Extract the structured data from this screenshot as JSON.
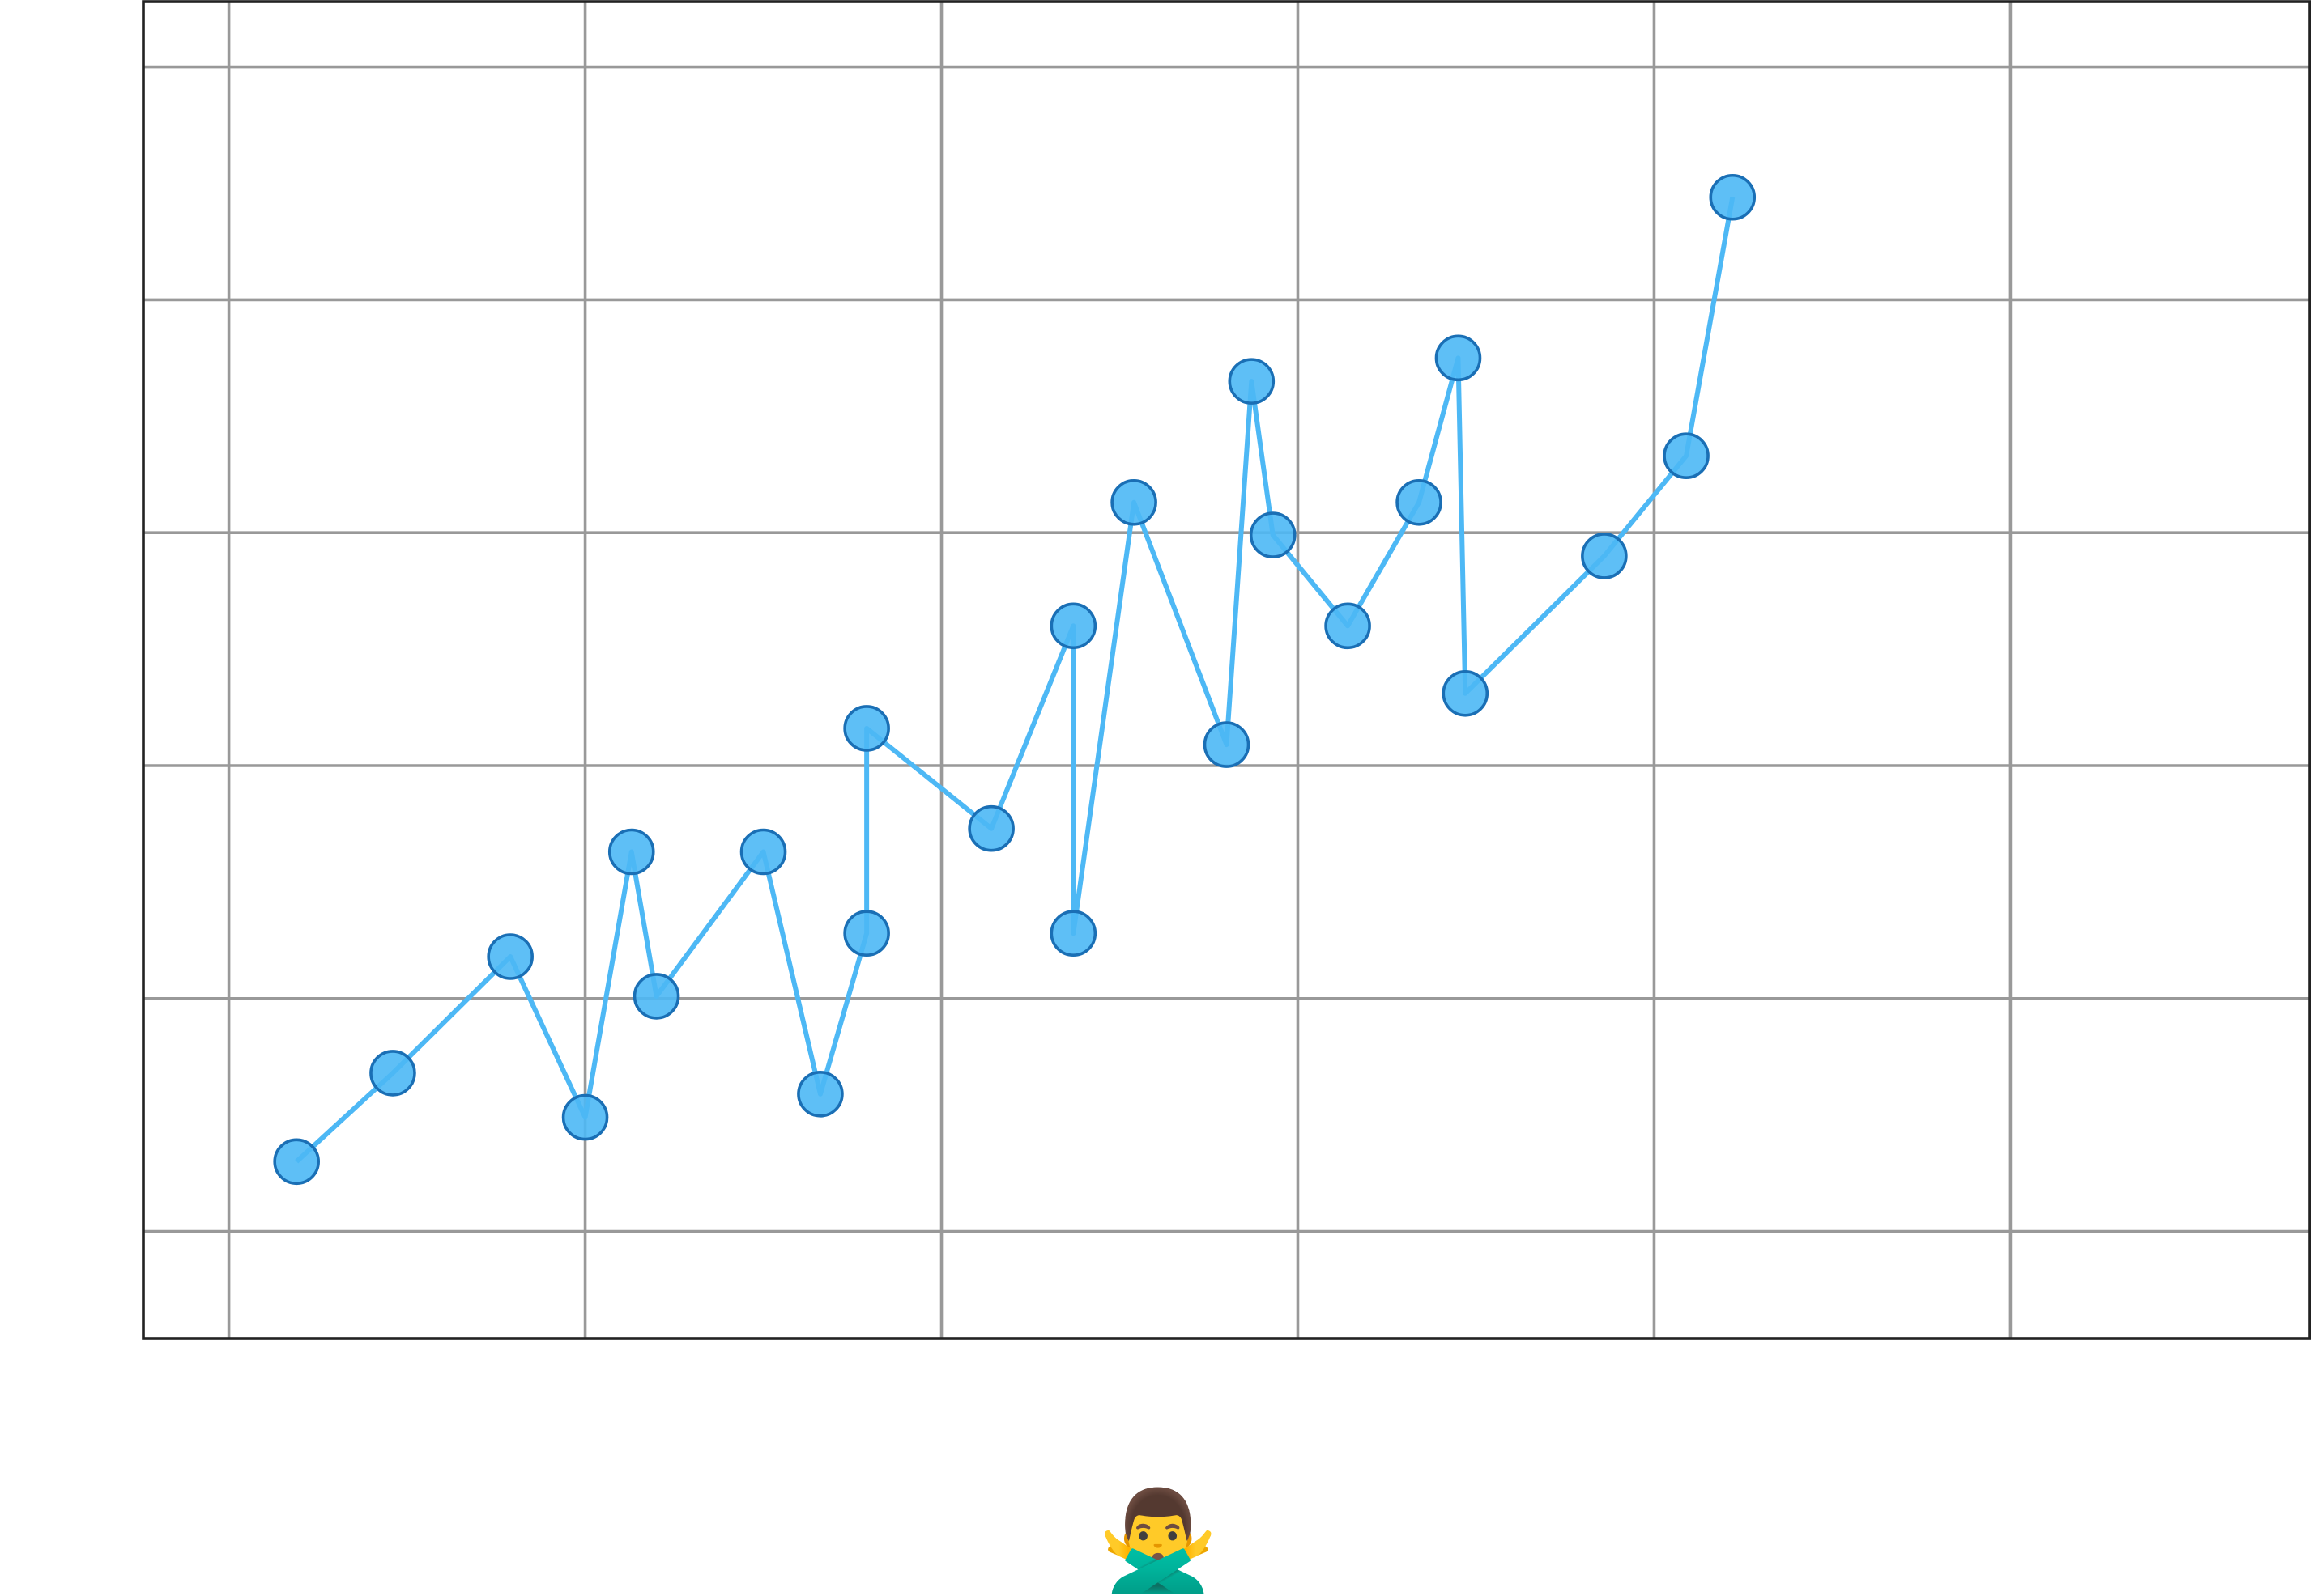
{
  "chart_data": {
    "type": "line",
    "x": [
      0.19,
      0.46,
      0.79,
      1.0,
      1.13,
      1.2,
      1.5,
      1.66,
      1.79,
      1.79,
      2.14,
      2.37,
      2.37,
      2.54,
      2.8,
      2.87,
      2.93,
      3.14,
      3.34,
      3.45,
      3.47,
      3.86,
      4.09,
      4.22
    ],
    "series": [
      {
        "color": "#4db8f5",
        "marker_edge_color": "#1a6fb5",
        "values": [
          0.3,
          0.68,
          1.18,
          0.49,
          1.63,
          1.01,
          1.63,
          0.59,
          1.28,
          2.16,
          1.73,
          2.6,
          1.28,
          3.13,
          2.09,
          3.65,
          2.99,
          2.6,
          3.13,
          3.75,
          2.31,
          2.9,
          3.33,
          4.44
        ]
      }
    ],
    "xlim": [
      -0.24,
      5.84
    ],
    "ylim": [
      -0.46,
      5.28
    ],
    "xticks": [
      0,
      1,
      2,
      3,
      4,
      5
    ],
    "yticks": [
      0,
      1,
      2,
      3,
      4,
      5
    ],
    "grid": true,
    "markers": true,
    "annotation": "🙅‍♂️"
  }
}
